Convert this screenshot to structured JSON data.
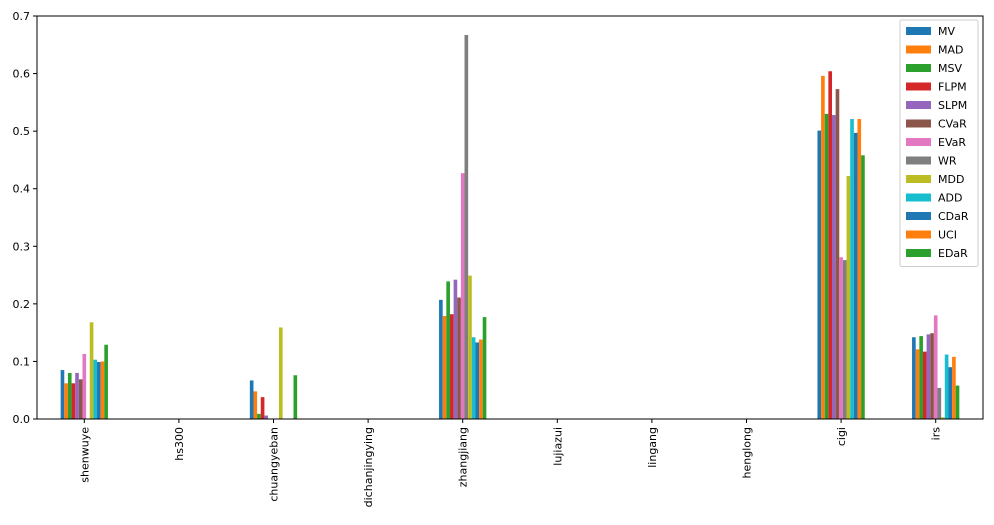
{
  "chart_data": {
    "type": "bar",
    "title": "",
    "xlabel": "",
    "ylabel": "",
    "ylim": [
      0,
      0.7
    ],
    "yticks": [
      "0.0",
      "0.1",
      "0.2",
      "0.3",
      "0.4",
      "0.5",
      "0.6",
      "0.7"
    ],
    "grid": false,
    "legend_position": "top-right",
    "categories": [
      "shenwuye",
      "hs300",
      "chuangyeban",
      "dichanjingying",
      "zhangjiang",
      "lujiazui",
      "lingang",
      "henglong",
      "cigi",
      "irs"
    ],
    "series": [
      {
        "name": "MV",
        "color": "#1f77b4",
        "values": [
          0.085,
          0,
          0.067,
          0,
          0.207,
          0,
          0,
          0,
          0.501,
          0.142
        ]
      },
      {
        "name": "MAD",
        "color": "#ff7f0e",
        "values": [
          0.062,
          0,
          0.048,
          0,
          0.179,
          0,
          0,
          0,
          0.596,
          0.121
        ]
      },
      {
        "name": "MSV",
        "color": "#2ca02c",
        "values": [
          0.08,
          0,
          0.009,
          0,
          0.239,
          0,
          0,
          0,
          0.53,
          0.144
        ]
      },
      {
        "name": "FLPM",
        "color": "#d62728",
        "values": [
          0.062,
          0,
          0.038,
          0,
          0.182,
          0,
          0,
          0,
          0.604,
          0.117
        ]
      },
      {
        "name": "SLPM",
        "color": "#9467bd",
        "values": [
          0.08,
          0,
          0.006,
          0,
          0.242,
          0,
          0,
          0,
          0.528,
          0.147
        ]
      },
      {
        "name": "CVaR",
        "color": "#8c564b",
        "values": [
          0.069,
          0,
          0.0,
          0,
          0.211,
          0,
          0,
          0,
          0.573,
          0.149
        ]
      },
      {
        "name": "EVaR",
        "color": "#e377c2",
        "values": [
          0.113,
          0,
          0.0,
          0,
          0.427,
          0,
          0,
          0,
          0.281,
          0.18
        ]
      },
      {
        "name": "WR",
        "color": "#7f7f7f",
        "values": [
          0.0,
          0,
          0.0,
          0,
          0.667,
          0,
          0,
          0,
          0.276,
          0.054
        ]
      },
      {
        "name": "MDD",
        "color": "#bcbd22",
        "values": [
          0.168,
          0,
          0.159,
          0,
          0.249,
          0,
          0,
          0,
          0.422,
          0.003
        ]
      },
      {
        "name": "ADD",
        "color": "#17becf",
        "values": [
          0.103,
          0,
          0.0,
          0,
          0.142,
          0,
          0,
          0,
          0.521,
          0.112
        ]
      },
      {
        "name": "CDaR",
        "color": "#1f77b4",
        "values": [
          0.099,
          0,
          0.0,
          0,
          0.133,
          0,
          0,
          0,
          0.497,
          0.09
        ]
      },
      {
        "name": "UCI",
        "color": "#ff7f0e",
        "values": [
          0.1,
          0,
          0.0,
          0,
          0.138,
          0,
          0,
          0,
          0.521,
          0.108
        ]
      },
      {
        "name": "EDaR",
        "color": "#2ca02c",
        "values": [
          0.129,
          0,
          0.076,
          0,
          0.177,
          0,
          0,
          0,
          0.458,
          0.058
        ]
      }
    ]
  }
}
